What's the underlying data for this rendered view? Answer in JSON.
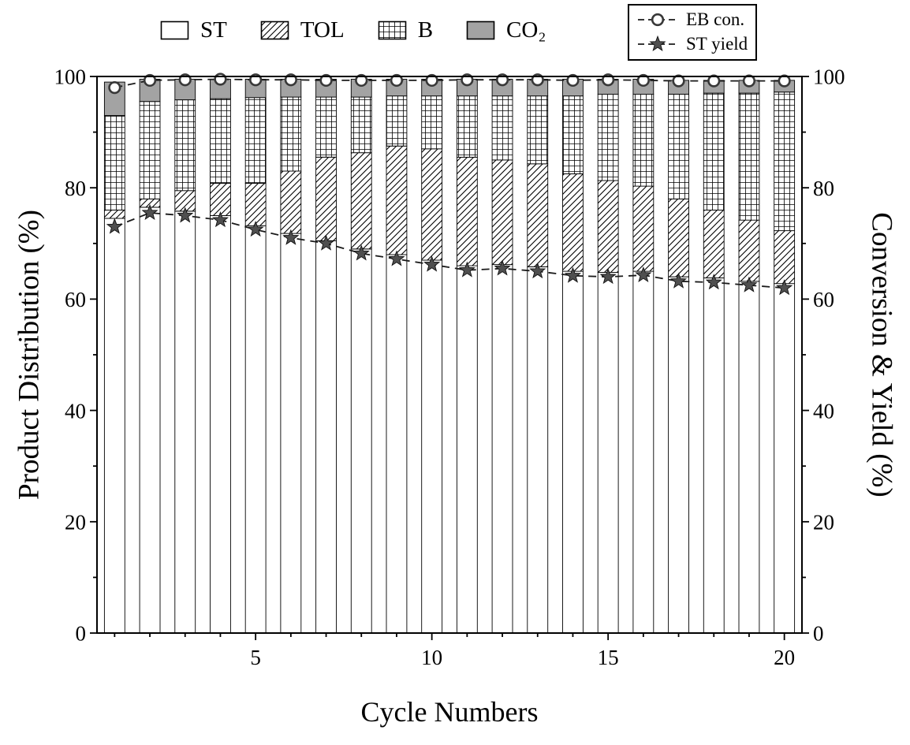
{
  "chart_data": {
    "type": "bar",
    "stacked": true,
    "secondary_type": "line",
    "title": "",
    "xlabel": "Cycle Numbers",
    "ylabel_left": "Product Distribution (%)",
    "ylabel_right": "Conversion & Yield (%)",
    "categories": [
      1,
      2,
      3,
      4,
      5,
      6,
      7,
      8,
      9,
      10,
      11,
      12,
      13,
      14,
      15,
      16,
      17,
      18,
      19,
      20
    ],
    "ylim": [
      0,
      100
    ],
    "ylim_right": [
      0,
      100
    ],
    "y_ticks": [
      0,
      20,
      40,
      60,
      80,
      100
    ],
    "y_minor_step": 10,
    "x_ticks": [
      5,
      10,
      15,
      20
    ],
    "grid": false,
    "legend_bars_position": "top-center",
    "legend_lines_position": "top-right-boxed",
    "colors": {
      "axis": "#000000",
      "line": "#1a1a1a",
      "co2_fill": "#a3a3a3",
      "star_fill": "#4f4f4f",
      "circle_stroke": "#383838",
      "bar_stroke": "#000000"
    },
    "bar_series": [
      {
        "name": "ST",
        "pattern": "none",
        "color": "#ffffff",
        "values": [
          74.5,
          76.5,
          75.8,
          75.0,
          73.2,
          71.8,
          70.5,
          69.0,
          68.0,
          67.0,
          66.0,
          66.2,
          65.8,
          65.0,
          64.8,
          65.0,
          64.0,
          63.8,
          63.2,
          62.8
        ]
      },
      {
        "name": "TOL",
        "pattern": "diag",
        "color": "#ffffff",
        "values": [
          1.5,
          1.5,
          3.7,
          5.8,
          7.6,
          11.2,
          15.0,
          17.3,
          19.5,
          20.0,
          19.5,
          18.8,
          18.5,
          17.5,
          16.5,
          15.3,
          14.0,
          12.2,
          11.0,
          9.5
        ]
      },
      {
        "name": "B",
        "pattern": "grid",
        "color": "#ffffff",
        "values": [
          17.0,
          17.5,
          16.3,
          15.2,
          15.4,
          13.3,
          10.8,
          10.0,
          9.0,
          9.5,
          11.0,
          11.5,
          12.2,
          14.0,
          15.5,
          16.5,
          18.8,
          21.0,
          22.8,
          24.9
        ]
      },
      {
        "name": "CO₂",
        "pattern": "solid",
        "color": "#a3a3a3",
        "values": [
          6.0,
          4.0,
          3.7,
          3.5,
          3.3,
          3.2,
          3.2,
          3.2,
          3.0,
          3.0,
          3.0,
          3.0,
          3.0,
          3.0,
          2.7,
          2.7,
          2.5,
          2.3,
          2.3,
          2.1
        ]
      }
    ],
    "line_series": [
      {
        "name": "EB con.",
        "marker": "circle",
        "axis": "right",
        "values": [
          98.0,
          99.3,
          99.4,
          99.5,
          99.4,
          99.4,
          99.3,
          99.3,
          99.3,
          99.3,
          99.4,
          99.4,
          99.4,
          99.3,
          99.4,
          99.3,
          99.2,
          99.2,
          99.2,
          99.2
        ]
      },
      {
        "name": "ST yield",
        "marker": "star",
        "axis": "right",
        "values": [
          73.0,
          75.5,
          75.0,
          74.2,
          72.5,
          71.0,
          70.0,
          68.2,
          67.2,
          66.2,
          65.2,
          65.5,
          65.0,
          64.2,
          64.0,
          64.3,
          63.2,
          63.0,
          62.5,
          62.0
        ]
      }
    ]
  }
}
